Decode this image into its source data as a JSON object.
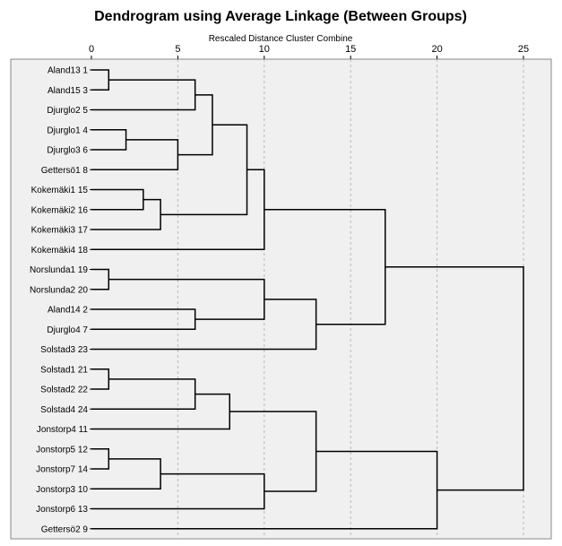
{
  "chart_data": {
    "type": "dendrogram",
    "title": "Dendrogram using Average Linkage (Between Groups)",
    "xlabel": "Rescaled Distance Cluster Combine",
    "xlim": [
      0,
      25
    ],
    "xticks": [
      "0",
      "5",
      "10",
      "15",
      "20",
      "25"
    ],
    "grid": true,
    "leaves": [
      "Aland13 1",
      "Aland15 3",
      "Djurglo2 5",
      "Djurglo1 4",
      "Djurglo3 6",
      "Gettersö1 8",
      "Kokemäki1 15",
      "Kokemäki2 16",
      "Kokemäki3 17",
      "Kokemäki4 18",
      "Norslunda1 19",
      "Norslunda2 20",
      "Aland14 2",
      "Djurglo4 7",
      "Solstad3 23",
      "Solstad1 21",
      "Solstad2 22",
      "Solstad4 24",
      "Jonstorp4 11",
      "Jonstorp5 12",
      "Jonstorp7 14",
      "Jonstorp3 10",
      "Jonstorp6 13",
      "Gettersö2 9"
    ],
    "merges": [
      {
        "left": "L0",
        "right": "L1",
        "distance": 1
      },
      {
        "left": "L3",
        "right": "L4",
        "distance": 2
      },
      {
        "left": "L6",
        "right": "L7",
        "distance": 3
      },
      {
        "left": "L10",
        "right": "L11",
        "distance": 1
      },
      {
        "left": "L15",
        "right": "L16",
        "distance": 1
      },
      {
        "left": "L19",
        "right": "L20",
        "distance": 1
      },
      {
        "left": "M0",
        "right": "L2",
        "distance": 6
      },
      {
        "left": "M1",
        "right": "L5",
        "distance": 5
      },
      {
        "left": "M2",
        "right": "L8",
        "distance": 4
      },
      {
        "left": "L12",
        "right": "L13",
        "distance": 6
      },
      {
        "left": "M4",
        "right": "L17",
        "distance": 6
      },
      {
        "left": "M5",
        "right": "L21",
        "distance": 4
      },
      {
        "left": "M6",
        "right": "M7",
        "distance": 7
      },
      {
        "left": "M3",
        "right": "M9",
        "distance": 10
      },
      {
        "left": "M10",
        "right": "L18",
        "distance": 8
      },
      {
        "left": "M11",
        "right": "L22",
        "distance": 10
      },
      {
        "left": "M12",
        "right": "M8",
        "distance": 9
      },
      {
        "left": "M13",
        "right": "L14",
        "distance": 13
      },
      {
        "left": "M14",
        "right": "M15",
        "distance": 13
      },
      {
        "left": "M16",
        "right": "L9",
        "distance": 10
      },
      {
        "left": "M19",
        "right": "M17",
        "distance": 17
      },
      {
        "left": "M18",
        "right": "L23",
        "distance": 20
      },
      {
        "left": "M20",
        "right": "M21",
        "distance": 25
      }
    ]
  }
}
